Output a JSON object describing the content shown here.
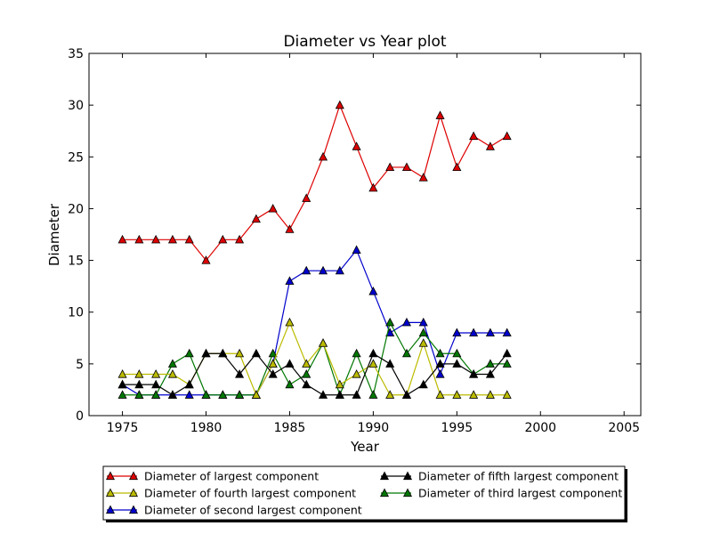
{
  "chart_data": {
    "type": "line",
    "title": "Diameter vs Year plot",
    "xlabel": "Year",
    "ylabel": "Diameter",
    "xlim": [
      1973,
      2006
    ],
    "ylim": [
      0,
      35
    ],
    "xticks": [
      1975,
      1980,
      1985,
      1990,
      1995,
      2000,
      2005
    ],
    "yticks": [
      0,
      5,
      10,
      15,
      20,
      25,
      30,
      35
    ],
    "grid": false,
    "legend_placement": "bottom-center",
    "marker": "triangle-up",
    "x": [
      1975,
      1976,
      1977,
      1978,
      1979,
      1980,
      1981,
      1982,
      1983,
      1984,
      1985,
      1986,
      1987,
      1988,
      1989,
      1990,
      1991,
      1992,
      1993,
      1994,
      1995,
      1996,
      1997,
      1998
    ],
    "series": [
      {
        "name": "Diameter of largest component",
        "color": "#dd0000",
        "values": [
          17,
          17,
          17,
          17,
          17,
          15,
          17,
          17,
          19,
          20,
          18,
          21,
          25,
          30,
          26,
          22,
          24,
          24,
          23,
          29,
          24,
          27,
          26,
          27
        ]
      },
      {
        "name": "Diameter of second largest component",
        "color": "#0000cc",
        "values": [
          3,
          2,
          2,
          2,
          2,
          2,
          2,
          2,
          2,
          5,
          13,
          14,
          14,
          14,
          16,
          12,
          8,
          9,
          9,
          4,
          8,
          8,
          8,
          8
        ]
      },
      {
        "name": "Diameter of third largest component",
        "color": "#007700",
        "values": [
          2,
          2,
          2,
          5,
          6,
          2,
          2,
          2,
          2,
          6,
          3,
          4,
          7,
          2,
          6,
          2,
          9,
          6,
          8,
          6,
          6,
          4,
          5,
          5
        ]
      },
      {
        "name": "Diameter of fourth largest component",
        "color": "#bbbb00",
        "values": [
          4,
          4,
          4,
          4,
          3,
          6,
          6,
          6,
          2,
          5,
          9,
          5,
          7,
          3,
          4,
          5,
          2,
          2,
          7,
          2,
          2,
          2,
          2,
          2
        ]
      },
      {
        "name": "Diameter of fifth largest component",
        "color": "#000000",
        "values": [
          3,
          3,
          3,
          2,
          3,
          6,
          6,
          4,
          6,
          4,
          5,
          3,
          2,
          2,
          2,
          6,
          5,
          2,
          3,
          5,
          5,
          4,
          4,
          6
        ]
      }
    ],
    "legend_order": [
      0,
      3,
      1,
      4,
      2
    ]
  }
}
